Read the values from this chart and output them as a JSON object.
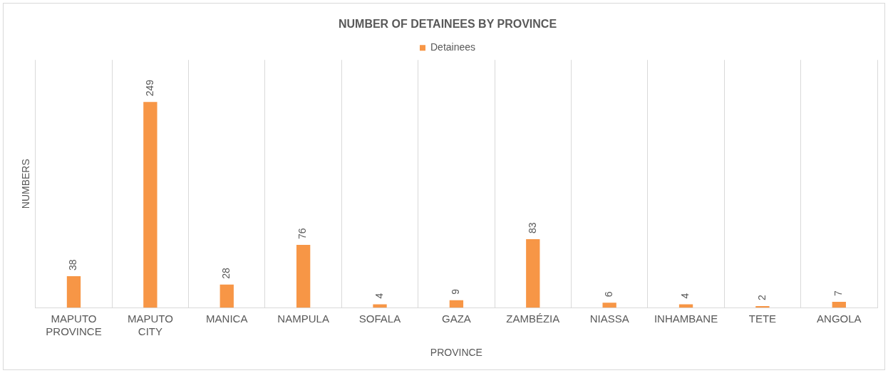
{
  "chart_data": {
    "type": "bar",
    "title": "NUMBER OF DETAINEES BY PROVINCE",
    "xlabel": "PROVINCE",
    "ylabel": "NUMBERS",
    "categories": [
      "MAPUTO PROVINCE",
      "MAPUTO CITY",
      "MANICA",
      "NAMPULA",
      "SOFALA",
      "GAZA",
      "ZAMBÉZIA",
      "NIASSA",
      "INHAMBANE",
      "TETE",
      "ANGOLA"
    ],
    "series": [
      {
        "name": "Detainees",
        "color": "#f79646",
        "values": [
          38,
          249,
          28,
          76,
          4,
          9,
          83,
          6,
          4,
          2,
          7
        ]
      }
    ],
    "data_labels": true,
    "grid": "x",
    "legend": "top"
  }
}
